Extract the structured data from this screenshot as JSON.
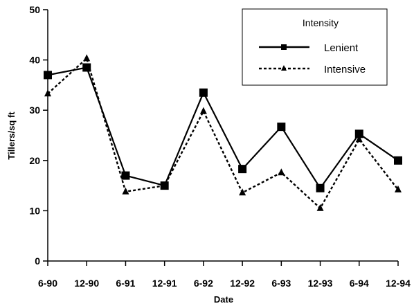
{
  "chart_data": {
    "type": "line",
    "title": "",
    "xlabel": "Date",
    "ylabel": "Tillers/sq ft",
    "categories": [
      "6-90",
      "12-90",
      "6-91",
      "12-91",
      "6-92",
      "12-92",
      "6-93",
      "12-93",
      "6-94",
      "12-94"
    ],
    "ylim": [
      0,
      50
    ],
    "yticks": [
      "0",
      "10",
      "20",
      "30",
      "40",
      "50"
    ],
    "grid": false,
    "legend": {
      "title": "Intensity",
      "position": "top-right"
    },
    "series": [
      {
        "name": "Lenient",
        "style": "solid",
        "marker": "square",
        "values": [
          37,
          38.5,
          17,
          15,
          33.5,
          18.3,
          26.7,
          14.5,
          25.3,
          20
        ]
      },
      {
        "name": "Intensive",
        "style": "dashed",
        "marker": "triangle",
        "values": [
          33.3,
          40.3,
          13.8,
          15,
          29.8,
          13.6,
          17.6,
          10.5,
          24.2,
          14.2
        ]
      }
    ]
  }
}
